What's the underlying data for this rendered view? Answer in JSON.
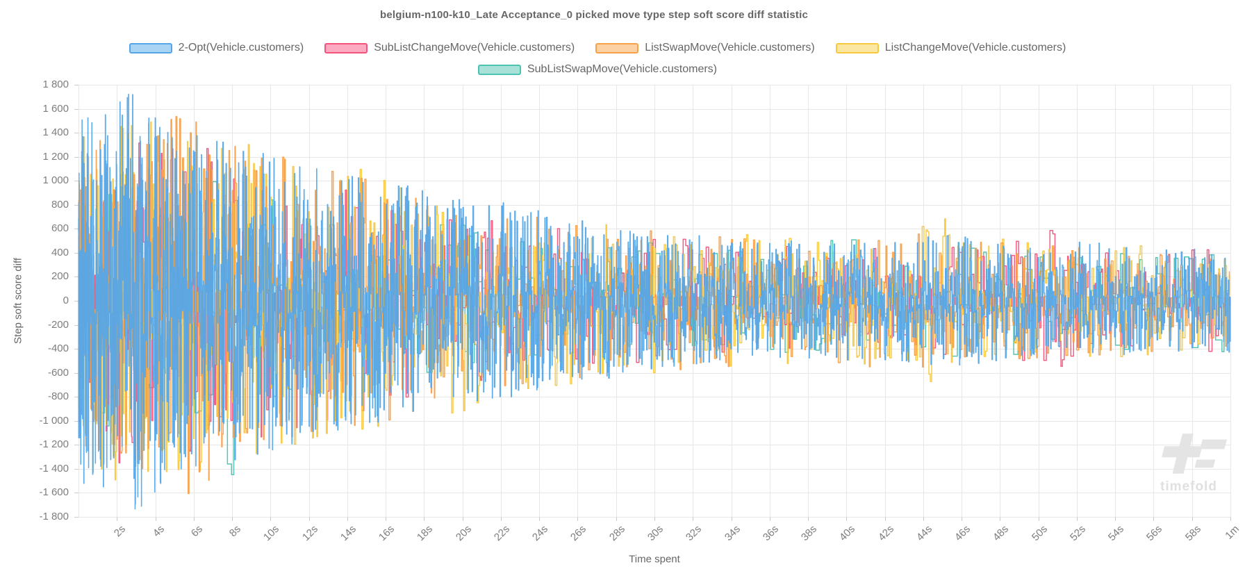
{
  "page": {
    "background": "#ffffff"
  },
  "chart_data": {
    "type": "line",
    "stepped": true,
    "title": "belgium-n100-k10_Late Acceptance_0 picked move type step soft score diff statistic",
    "xlabel": "Time spent",
    "ylabel": "Step soft score diff",
    "grid": true,
    "legend_position": "top",
    "watermark_text": "timefold",
    "x_axis": {
      "range_seconds": [
        0,
        60
      ],
      "tick_seconds": [
        2,
        4,
        6,
        8,
        10,
        12,
        14,
        16,
        18,
        20,
        22,
        24,
        26,
        28,
        30,
        32,
        34,
        36,
        38,
        40,
        42,
        44,
        46,
        48,
        50,
        52,
        54,
        56,
        58,
        60
      ],
      "tick_labels": [
        "2s",
        "4s",
        "6s",
        "8s",
        "10s",
        "12s",
        "14s",
        "16s",
        "18s",
        "20s",
        "22s",
        "24s",
        "26s",
        "28s",
        "30s",
        "32s",
        "34s",
        "36s",
        "38s",
        "40s",
        "42s",
        "44s",
        "46s",
        "48s",
        "50s",
        "52s",
        "54s",
        "56s",
        "58s",
        "1m"
      ]
    },
    "y_axis": {
      "range": [
        -1800,
        1800
      ],
      "tick_step": 200,
      "tick_labels": [
        "1 800",
        "1 600",
        "1 400",
        "1 200",
        "1 000",
        "800",
        "600",
        "400",
        "200",
        "0",
        "-200",
        "-400",
        "-600",
        "-800",
        "-1 000",
        "-1 200",
        "-1 400",
        "-1 600",
        "-1 800"
      ]
    },
    "colors": {
      "grid": "#e7e7e7",
      "tick_mark": "#cccccc",
      "text": "#666666",
      "tick_text": "#7d7d7d",
      "watermark": "#e4e4e4"
    },
    "draw_order": [
      4,
      1,
      3,
      2,
      0
    ],
    "series": [
      {
        "name": "2-Opt(Vehicle.customers)",
        "color": "#55a6e8",
        "fill_color": "#aad4f4",
        "line_width": 1.4,
        "points": 2600,
        "seed": 11,
        "time_power": 1.35,
        "mag_power": 1.7,
        "amplitude_envelope": [
          [
            0,
            1500
          ],
          [
            2,
            1700
          ],
          [
            3,
            1800
          ],
          [
            5,
            1450
          ],
          [
            8,
            1350
          ],
          [
            10,
            1250
          ],
          [
            13,
            1100
          ],
          [
            16,
            1000
          ],
          [
            19,
            900
          ],
          [
            22,
            820
          ],
          [
            25,
            730
          ],
          [
            28,
            640
          ],
          [
            31,
            560
          ],
          [
            34,
            530
          ],
          [
            37,
            500
          ],
          [
            40,
            500
          ],
          [
            43,
            530
          ],
          [
            46,
            560
          ],
          [
            49,
            480
          ],
          [
            52,
            500
          ],
          [
            55,
            460
          ],
          [
            58,
            440
          ],
          [
            60,
            460
          ]
        ]
      },
      {
        "name": "SubListChangeMove(Vehicle.customers)",
        "color": "#f4547c",
        "fill_color": "#fbaac1",
        "line_width": 1.5,
        "points": 680,
        "seed": 22,
        "time_power": 1.3,
        "mag_power": 2.1,
        "amplitude_envelope": [
          [
            0,
            1250
          ],
          [
            3,
            1450
          ],
          [
            6,
            1300
          ],
          [
            9,
            1200
          ],
          [
            12,
            1050
          ],
          [
            15,
            950
          ],
          [
            18,
            850
          ],
          [
            21,
            780
          ],
          [
            24,
            640
          ],
          [
            27,
            580
          ],
          [
            30,
            540
          ],
          [
            33,
            500
          ],
          [
            36,
            470
          ],
          [
            39,
            450
          ],
          [
            42,
            460
          ],
          [
            45,
            470
          ],
          [
            48,
            450
          ],
          [
            51,
            630
          ],
          [
            54,
            440
          ],
          [
            57,
            430
          ],
          [
            60,
            430
          ]
        ]
      },
      {
        "name": "ListSwapMove(Vehicle.customers)",
        "color": "#f8a14b",
        "fill_color": "#fcd2a5",
        "line_width": 1.5,
        "points": 1100,
        "seed": 33,
        "time_power": 1.35,
        "mag_power": 2.0,
        "amplitude_envelope": [
          [
            0,
            1300
          ],
          [
            3,
            1400
          ],
          [
            6,
            1650
          ],
          [
            9,
            1300
          ],
          [
            12,
            1150
          ],
          [
            15,
            1050
          ],
          [
            18,
            950
          ],
          [
            21,
            800
          ],
          [
            24,
            700
          ],
          [
            27,
            640
          ],
          [
            30,
            600
          ],
          [
            33,
            560
          ],
          [
            36,
            520
          ],
          [
            39,
            500
          ],
          [
            42,
            690
          ],
          [
            45,
            540
          ],
          [
            48,
            500
          ],
          [
            51,
            470
          ],
          [
            54,
            450
          ],
          [
            57,
            440
          ],
          [
            60,
            440
          ]
        ]
      },
      {
        "name": "ListChangeMove(Vehicle.customers)",
        "color": "#f8c93f",
        "fill_color": "#fce7a2",
        "line_width": 1.5,
        "points": 1100,
        "seed": 44,
        "time_power": 1.35,
        "mag_power": 2.0,
        "amplitude_envelope": [
          [
            0,
            1400
          ],
          [
            3,
            1550
          ],
          [
            6,
            1450
          ],
          [
            9,
            1350
          ],
          [
            12,
            1200
          ],
          [
            15,
            1100
          ],
          [
            18,
            1000
          ],
          [
            21,
            880
          ],
          [
            24,
            760
          ],
          [
            27,
            660
          ],
          [
            30,
            620
          ],
          [
            33,
            570
          ],
          [
            36,
            540
          ],
          [
            39,
            520
          ],
          [
            42,
            540
          ],
          [
            45,
            710
          ],
          [
            48,
            560
          ],
          [
            51,
            500
          ],
          [
            54,
            470
          ],
          [
            57,
            450
          ],
          [
            60,
            450
          ]
        ]
      },
      {
        "name": "SubListSwapMove(Vehicle.customers)",
        "color": "#4cc2b0",
        "fill_color": "#a8e1d8",
        "line_width": 1.5,
        "points": 340,
        "seed": 55,
        "time_power": 1.15,
        "mag_power": 1.6,
        "amplitude_envelope": [
          [
            0,
            950
          ],
          [
            3,
            1150
          ],
          [
            6,
            1000
          ],
          [
            8,
            1550
          ],
          [
            10,
            900
          ],
          [
            13,
            800
          ],
          [
            16,
            720
          ],
          [
            19,
            650
          ],
          [
            22,
            600
          ],
          [
            25,
            560
          ],
          [
            28,
            520
          ],
          [
            31,
            500
          ],
          [
            34,
            480
          ],
          [
            37,
            460
          ],
          [
            40,
            560
          ],
          [
            43,
            500
          ],
          [
            46,
            470
          ],
          [
            49,
            450
          ],
          [
            52,
            430
          ],
          [
            55,
            420
          ],
          [
            58,
            420
          ],
          [
            60,
            430
          ]
        ]
      }
    ]
  }
}
